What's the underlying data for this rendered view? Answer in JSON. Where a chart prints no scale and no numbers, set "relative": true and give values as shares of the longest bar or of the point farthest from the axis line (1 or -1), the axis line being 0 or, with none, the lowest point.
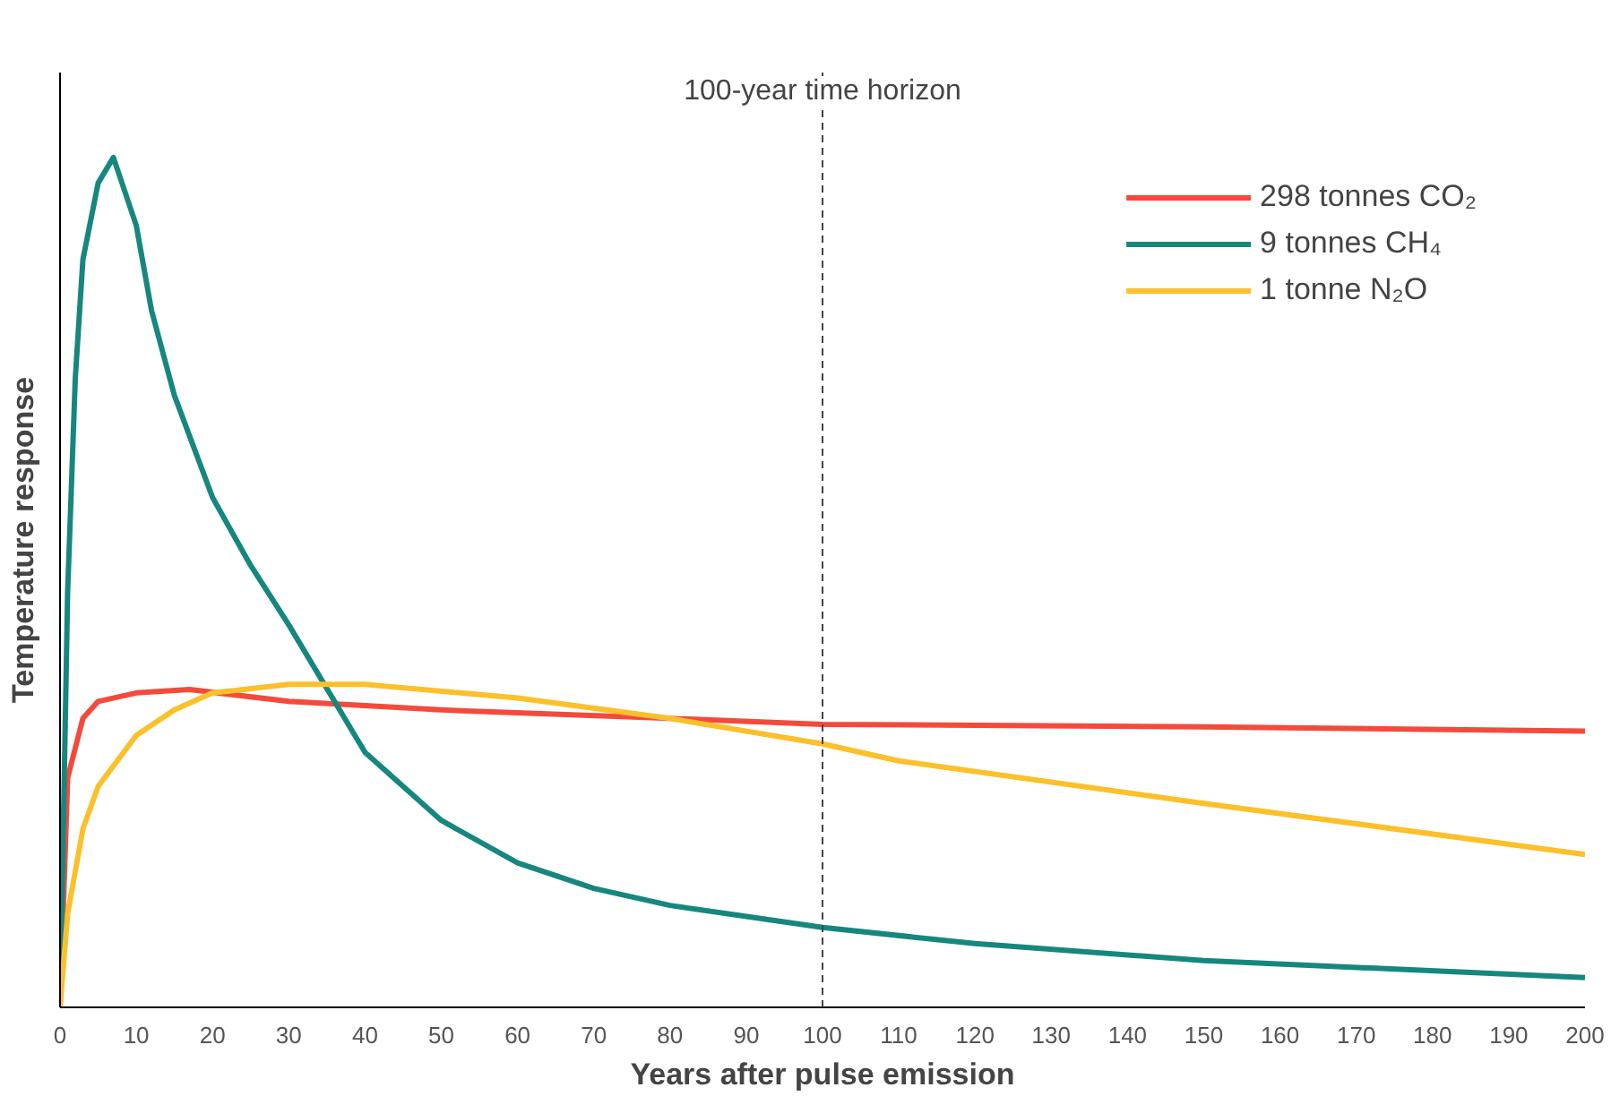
{
  "chart_data": {
    "type": "line",
    "relative": true,
    "xlabel": "Years after pulse emission",
    "ylabel": "Temperature response",
    "xlim": [
      0,
      200
    ],
    "xticks": [
      0,
      10,
      20,
      30,
      40,
      50,
      60,
      70,
      80,
      90,
      100,
      110,
      120,
      130,
      140,
      150,
      160,
      170,
      180,
      190,
      200
    ],
    "tick_labels": "x",
    "grid": false,
    "legend": "top right",
    "line_style": "solid",
    "ref_lines": [
      {
        "axis": "x",
        "value": 100,
        "label": "100-year time horizon",
        "color": "#444444",
        "line_style": "dashed"
      }
    ],
    "series": [
      {
        "name": "298 tonnes CO₂",
        "color": "#f44a3c",
        "x": [
          0,
          1,
          3,
          5,
          10,
          17,
          30,
          50,
          80,
          100,
          150,
          200
        ],
        "values": [
          0,
          0.27,
          0.34,
          0.36,
          0.37,
          0.374,
          0.36,
          0.35,
          0.34,
          0.333,
          0.33,
          0.325
        ]
      },
      {
        "name": "9 tonnes CH₄",
        "color": "#15877f",
        "x": [
          0,
          1,
          2,
          3,
          5,
          7,
          10,
          12,
          15,
          20,
          25,
          30,
          36,
          40,
          50,
          60,
          70,
          80,
          100,
          120,
          150,
          200
        ],
        "values": [
          0,
          0.49,
          0.74,
          0.88,
          0.97,
          1,
          0.92,
          0.82,
          0.72,
          0.6,
          0.52,
          0.45,
          0.36,
          0.3,
          0.22,
          0.17,
          0.14,
          0.12,
          0.094,
          0.075,
          0.055,
          0.035
        ]
      },
      {
        "name": "1 tonne N₂O",
        "color": "#fbc02a",
        "x": [
          0,
          1,
          3,
          5,
          10,
          15,
          20,
          30,
          40,
          60,
          80,
          100,
          110,
          150,
          200
        ],
        "values": [
          0,
          0.11,
          0.21,
          0.26,
          0.32,
          0.35,
          0.37,
          0.38,
          0.38,
          0.364,
          0.34,
          0.31,
          0.29,
          0.24,
          0.18
        ]
      }
    ]
  }
}
